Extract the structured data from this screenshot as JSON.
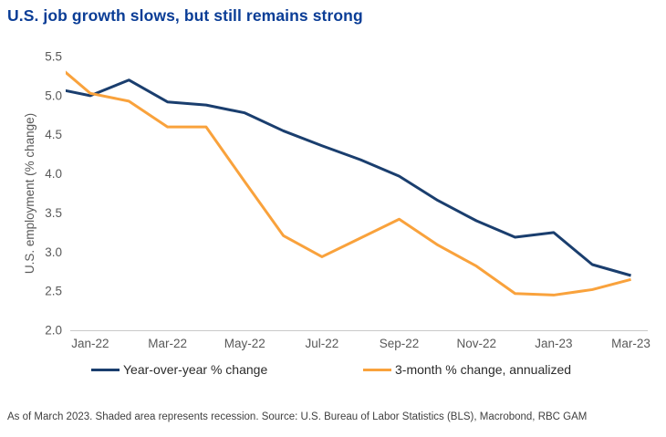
{
  "header": {
    "title": "U.S. job growth slows, but still remains strong",
    "title_color": "#0A3D96"
  },
  "chart_data": {
    "type": "line",
    "title": "U.S. job growth slows, but still remains strong",
    "xlabel": "",
    "ylabel": "U.S. employment (% change)",
    "ylim": [
      2.0,
      5.5
    ],
    "yticks": [
      2.0,
      2.5,
      3.0,
      3.5,
      4.0,
      4.5,
      5.0,
      5.5
    ],
    "x": [
      "Dec-21",
      "Jan-22",
      "Feb-22",
      "Mar-22",
      "Apr-22",
      "May-22",
      "Jun-22",
      "Jul-22",
      "Aug-22",
      "Sep-22",
      "Oct-22",
      "Nov-22",
      "Dec-22",
      "Jan-23",
      "Feb-23",
      "Mar-23"
    ],
    "xtick_labels": [
      "Jan-22",
      "Mar-22",
      "May-22",
      "Jul-22",
      "Sep-22",
      "Nov-22",
      "Jan-23",
      "Mar-23"
    ],
    "series": [
      {
        "name": "Year-over-year % change",
        "color": "#1A3E6E",
        "values": [
          5.1,
          5.0,
          5.2,
          4.92,
          4.88,
          4.78,
          4.55,
          4.36,
          4.18,
          3.97,
          3.66,
          3.4,
          3.19,
          3.25,
          2.84,
          2.7
        ]
      },
      {
        "name": "3-month % change, annualized",
        "color": "#F9A23C",
        "values": [
          5.45,
          5.03,
          4.93,
          4.6,
          4.6,
          3.9,
          3.21,
          2.94,
          3.18,
          3.42,
          3.09,
          2.82,
          2.47,
          2.45,
          2.52,
          2.65
        ]
      }
    ],
    "grid": false,
    "legend_position": "bottom",
    "axis_text_color": "#595959",
    "axis_line_color": "#C9C9C9"
  },
  "footnote": "As of March 2023. Shaded area represents recession. Source: U.S. Bureau of Labor Statistics (BLS), Macrobond, RBC GAM"
}
